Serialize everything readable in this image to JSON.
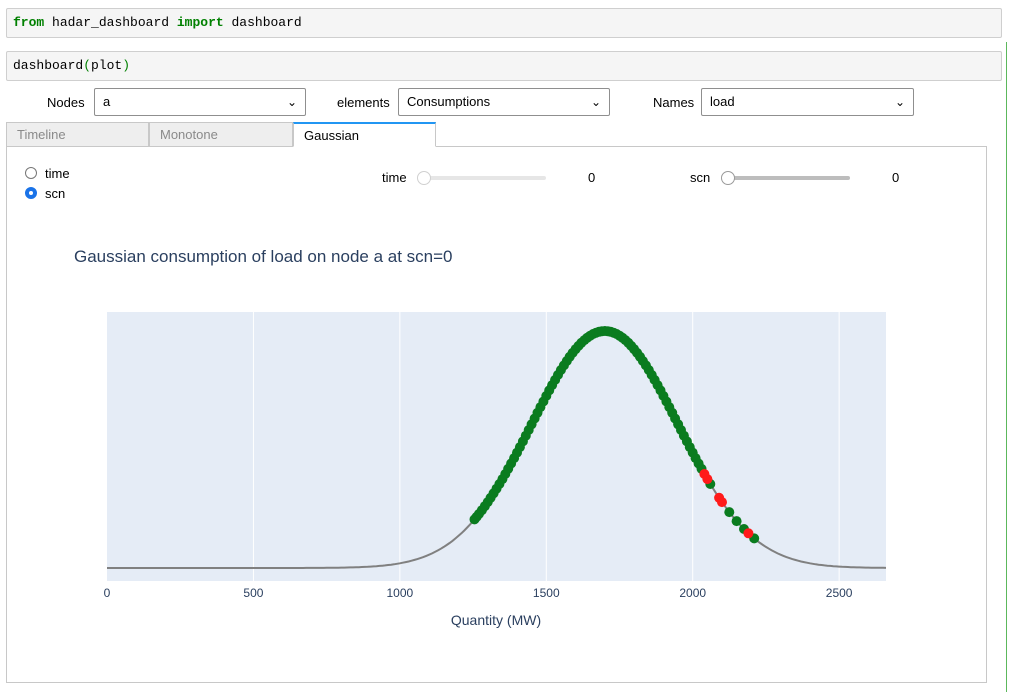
{
  "cell1": {
    "kw_from": "from",
    "module": "hadar_dashboard",
    "kw_import": "import",
    "name": "dashboard"
  },
  "cell2": {
    "func": "dashboard",
    "arg": "plot",
    "open": "(",
    "close": ")"
  },
  "controls": {
    "nodes_label": "Nodes",
    "nodes_value": "a",
    "elements_label": "elements",
    "elements_value": "Consumptions",
    "names_label": "Names",
    "names_value": "load"
  },
  "tabs": [
    {
      "label": "Timeline"
    },
    {
      "label": "Monotone"
    },
    {
      "label": "Gaussian"
    }
  ],
  "radio": {
    "options": [
      "time",
      "scn"
    ],
    "selected": "scn"
  },
  "sliders": [
    {
      "label": "time",
      "value": "0",
      "level": 0,
      "active": false
    },
    {
      "label": "scn",
      "value": "0",
      "level": 0,
      "active": true
    }
  ],
  "colors": {
    "plot_bg": "#e5ecf6",
    "curve": "#808080",
    "point_ok": "#0a7c1f",
    "point_over": "#ff1a1a",
    "accent": "#2196f3",
    "title": "#2a3f5f"
  },
  "chart_data": {
    "type": "scatter",
    "title": "Gaussian consumption of load on node a at scn=0",
    "xlabel": "Quantity (MW)",
    "ylabel": "",
    "xlim": [
      0,
      2660
    ],
    "xticks": [
      "0",
      "500",
      "1000",
      "1500",
      "2000",
      "2500"
    ],
    "tickvals": [
      0,
      500,
      1000,
      1500,
      2000,
      2500
    ],
    "gaussian": {
      "mean": 1700,
      "std": 250
    },
    "series": [
      {
        "kind": "line",
        "x_range": [
          0,
          2660
        ]
      },
      {
        "kind": "points",
        "color": "green",
        "x": [
          1255,
          1262,
          1270,
          1280,
          1290,
          1300,
          1310,
          1320,
          1330,
          1340,
          1350,
          1360,
          1370,
          1380,
          1390,
          1400,
          1410,
          1420,
          1430,
          1440,
          1450,
          1460,
          1470,
          1480,
          1490,
          1500,
          1510,
          1520,
          1530,
          1540,
          1550,
          1560,
          1570,
          1580,
          1590,
          1600,
          1610,
          1620,
          1630,
          1640,
          1650,
          1660,
          1670,
          1680,
          1690,
          1700,
          1710,
          1720,
          1730,
          1740,
          1750,
          1760,
          1770,
          1780,
          1790,
          1800,
          1810,
          1820,
          1830,
          1840,
          1850,
          1860,
          1870,
          1880,
          1890,
          1900,
          1910,
          1920,
          1930,
          1940,
          1950,
          1960,
          1970,
          1980,
          1990,
          2000,
          2010,
          2020,
          2030,
          2060,
          2125,
          2150,
          2175,
          2210
        ]
      },
      {
        "kind": "points",
        "color": "red",
        "x": [
          2040,
          2050,
          2090,
          2100,
          2190
        ]
      }
    ]
  }
}
